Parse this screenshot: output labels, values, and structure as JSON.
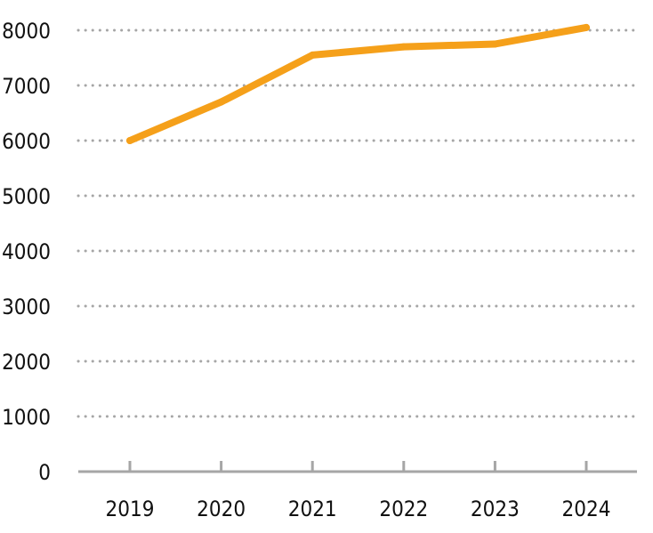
{
  "chart_data": {
    "type": "line",
    "title": "",
    "xlabel": "",
    "ylabel": "",
    "categories": [
      "2019",
      "2020",
      "2021",
      "2022",
      "2023",
      "2024"
    ],
    "series": [
      {
        "values": [
          6000,
          6700,
          7550,
          7700,
          7750,
          8050
        ],
        "color": "#f5a01a"
      }
    ],
    "ylim": [
      0,
      8000
    ],
    "yticks": [
      0,
      1000,
      2000,
      3000,
      4000,
      5000,
      6000,
      7000,
      8000
    ],
    "grid": true,
    "grid_style": "dotted",
    "legend": "none"
  }
}
